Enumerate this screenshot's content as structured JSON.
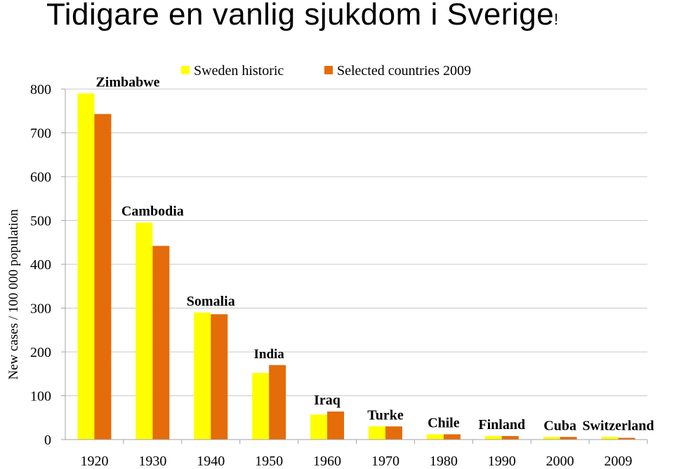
{
  "slide": {
    "title": "Tidigare en vanlig sjukdom i Sverige",
    "title_suffix": "!"
  },
  "chart_data": {
    "type": "bar",
    "categories": [
      "1920",
      "1930",
      "1940",
      "1950",
      "1960",
      "1970",
      "1980",
      "1990",
      "2000",
      "2009"
    ],
    "series": [
      {
        "name": "Sweden historic",
        "color": "#ffff00",
        "values": [
          790,
          495,
          290,
          152,
          57,
          30,
          12,
          8,
          6,
          6
        ]
      },
      {
        "name": "Selected countries 2009",
        "color": "#e46c0a",
        "values": [
          743,
          442,
          286,
          170,
          64,
          30,
          12,
          8,
          6,
          4
        ]
      }
    ],
    "annotations": [
      "Zimbabwe",
      "Cambodia",
      "Somalia",
      "India",
      "Iraq",
      "Turke",
      "Chile",
      "Finland",
      "Cuba",
      "Switzerland"
    ],
    "ylabel": "New cases / 100 000 population",
    "xlabel": "",
    "ylim": [
      0,
      800
    ],
    "yticks": [
      0,
      100,
      200,
      300,
      400,
      500,
      600,
      700,
      800
    ],
    "grid": true,
    "legend_position": "top"
  }
}
